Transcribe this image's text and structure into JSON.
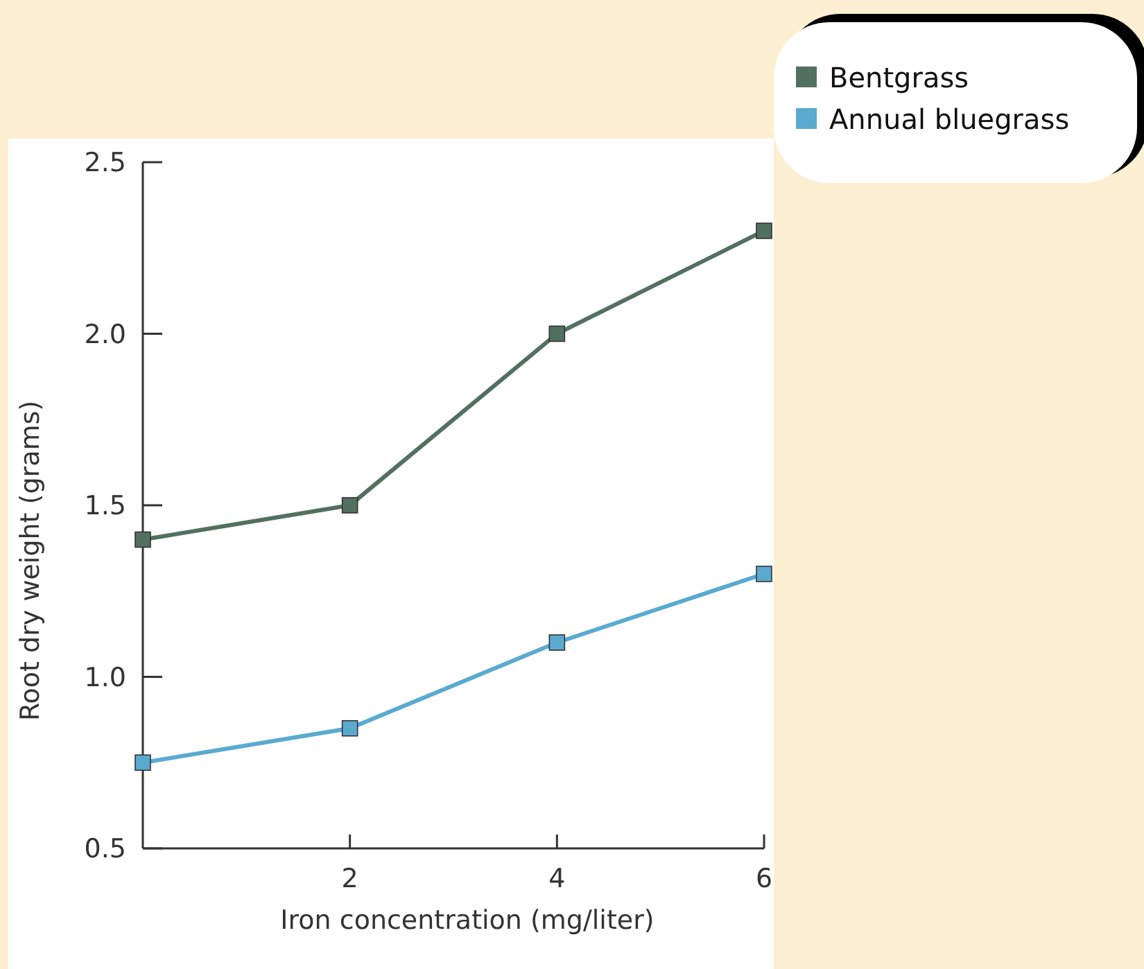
{
  "chart_data": {
    "type": "line",
    "xlabel": "Iron concentration (mg/liter)",
    "ylabel": "Root dry weight (grams)",
    "x": [
      0,
      2,
      4,
      6
    ],
    "series": [
      {
        "name": "Bentgrass",
        "color": "#52705f",
        "values": [
          1.4,
          1.5,
          2.0,
          2.3
        ]
      },
      {
        "name": "Annual bluegrass",
        "color": "#5aaad0",
        "values": [
          0.75,
          0.85,
          1.1,
          1.3
        ]
      }
    ],
    "xlim": [
      0,
      6
    ],
    "xticks": [
      2,
      4,
      6
    ],
    "ylim": [
      0.5,
      2.5
    ],
    "yticks": [
      {
        "value": 0.5,
        "label": "0.5"
      },
      {
        "value": 1,
        "label": "1.0"
      },
      {
        "value": 1.5,
        "label": "1.5"
      },
      {
        "value": 2,
        "label": "2.0"
      },
      {
        "value": 2.5,
        "label": "2.5"
      }
    ],
    "grid": false,
    "legend": "top right",
    "marker": "square",
    "line_style": "solid"
  }
}
